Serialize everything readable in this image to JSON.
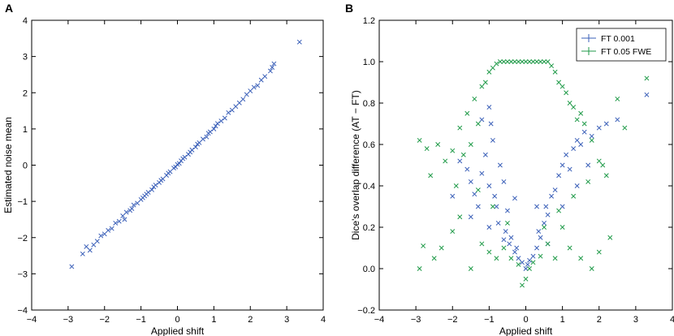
{
  "panel_a_label": "A",
  "panel_b_label": "B",
  "colors": {
    "blue": "#3a5fb8",
    "green": "#1f9a48"
  },
  "chart_data": [
    {
      "type": "scatter",
      "panel": "A",
      "xlabel": "Applied shift",
      "ylabel": "Estimated noise mean",
      "xlim": [
        -4,
        4
      ],
      "ylim": [
        -4,
        4
      ],
      "xticks": [
        "−4",
        "−3",
        "−2",
        "−1",
        "0",
        "1",
        "2",
        "3",
        "4"
      ],
      "yticks": [
        "−4",
        "−3",
        "−2",
        "−1",
        "0",
        "1",
        "2",
        "3",
        "4"
      ],
      "marker": "x",
      "series": [
        {
          "name": "estimates",
          "color": "#3a5fb8",
          "points": [
            [
              -2.9,
              -2.8
            ],
            [
              -2.6,
              -2.45
            ],
            [
              -2.5,
              -2.25
            ],
            [
              -2.4,
              -2.35
            ],
            [
              -2.3,
              -2.2
            ],
            [
              -2.2,
              -2.1
            ],
            [
              -2.1,
              -1.95
            ],
            [
              -2.0,
              -1.9
            ],
            [
              -1.9,
              -1.8
            ],
            [
              -1.8,
              -1.75
            ],
            [
              -1.7,
              -1.6
            ],
            [
              -1.6,
              -1.55
            ],
            [
              -1.5,
              -1.4
            ],
            [
              -1.45,
              -1.5
            ],
            [
              -1.4,
              -1.3
            ],
            [
              -1.3,
              -1.25
            ],
            [
              -1.25,
              -1.2
            ],
            [
              -1.2,
              -1.1
            ],
            [
              -1.1,
              -1.05
            ],
            [
              -1.0,
              -0.95
            ],
            [
              -0.95,
              -0.9
            ],
            [
              -0.9,
              -0.85
            ],
            [
              -0.85,
              -0.8
            ],
            [
              -0.8,
              -0.75
            ],
            [
              -0.7,
              -0.68
            ],
            [
              -0.65,
              -0.6
            ],
            [
              -0.6,
              -0.55
            ],
            [
              -0.5,
              -0.48
            ],
            [
              -0.45,
              -0.42
            ],
            [
              -0.4,
              -0.38
            ],
            [
              -0.3,
              -0.28
            ],
            [
              -0.25,
              -0.22
            ],
            [
              -0.2,
              -0.18
            ],
            [
              -0.1,
              -0.08
            ],
            [
              -0.05,
              -0.05
            ],
            [
              0.0,
              0.02
            ],
            [
              0.05,
              0.05
            ],
            [
              0.1,
              0.12
            ],
            [
              0.15,
              0.18
            ],
            [
              0.2,
              0.22
            ],
            [
              0.3,
              0.3
            ],
            [
              0.35,
              0.36
            ],
            [
              0.4,
              0.42
            ],
            [
              0.5,
              0.5
            ],
            [
              0.55,
              0.58
            ],
            [
              0.6,
              0.62
            ],
            [
              0.7,
              0.72
            ],
            [
              0.8,
              0.78
            ],
            [
              0.85,
              0.88
            ],
            [
              0.9,
              0.92
            ],
            [
              1.0,
              1.0
            ],
            [
              1.05,
              1.08
            ],
            [
              1.1,
              1.15
            ],
            [
              1.2,
              1.22
            ],
            [
              1.3,
              1.3
            ],
            [
              1.4,
              1.45
            ],
            [
              1.5,
              1.52
            ],
            [
              1.6,
              1.62
            ],
            [
              1.7,
              1.72
            ],
            [
              1.8,
              1.82
            ],
            [
              1.9,
              1.95
            ],
            [
              2.0,
              2.05
            ],
            [
              2.1,
              2.15
            ],
            [
              2.2,
              2.2
            ],
            [
              2.3,
              2.35
            ],
            [
              2.4,
              2.45
            ],
            [
              2.55,
              2.6
            ],
            [
              2.6,
              2.7
            ],
            [
              2.65,
              2.8
            ],
            [
              3.35,
              3.4
            ]
          ]
        }
      ]
    },
    {
      "type": "scatter",
      "panel": "B",
      "xlabel": "Applied shift",
      "ylabel": "Dice's overlap difference (AT − FT)",
      "xlim": [
        -4,
        4
      ],
      "ylim": [
        -0.2,
        1.2
      ],
      "xticks": [
        "−4",
        "−3",
        "−2",
        "−1",
        "0",
        "1",
        "2",
        "3",
        "4"
      ],
      "yticks": [
        "−0.2",
        "0.0",
        "0.2",
        "0.4",
        "0.6",
        "0.8",
        "1.0",
        "1.2"
      ],
      "legend": {
        "position": "top-right",
        "entries": [
          "FT 0.001",
          "FT 0.05 FWE"
        ]
      },
      "marker": "x",
      "series": [
        {
          "name": "FT 0.001",
          "color": "#3a5fb8",
          "points": [
            [
              -1.8,
              0.52
            ],
            [
              -1.6,
              0.48
            ],
            [
              -1.5,
              0.42
            ],
            [
              -1.4,
              0.36
            ],
            [
              -1.3,
              0.3
            ],
            [
              -1.2,
              0.46
            ],
            [
              -1.1,
              0.55
            ],
            [
              -1.0,
              0.4
            ],
            [
              -0.95,
              0.7
            ],
            [
              -0.9,
              0.62
            ],
            [
              -0.85,
              0.35
            ],
            [
              -0.8,
              0.3
            ],
            [
              -0.75,
              0.22
            ],
            [
              -0.7,
              0.5
            ],
            [
              -0.6,
              0.42
            ],
            [
              -0.55,
              0.18
            ],
            [
              -0.5,
              0.28
            ],
            [
              -0.45,
              0.12
            ],
            [
              -0.4,
              0.15
            ],
            [
              -0.3,
              0.08
            ],
            [
              -0.25,
              0.1
            ],
            [
              -0.2,
              0.05
            ],
            [
              -0.1,
              0.03
            ],
            [
              0.0,
              0.0
            ],
            [
              0.05,
              0.02
            ],
            [
              0.1,
              0.04
            ],
            [
              0.2,
              0.06
            ],
            [
              0.3,
              0.1
            ],
            [
              0.35,
              0.18
            ],
            [
              0.4,
              0.15
            ],
            [
              0.5,
              0.22
            ],
            [
              0.55,
              0.3
            ],
            [
              0.6,
              0.26
            ],
            [
              0.7,
              0.35
            ],
            [
              0.8,
              0.38
            ],
            [
              0.9,
              0.45
            ],
            [
              1.0,
              0.5
            ],
            [
              1.1,
              0.55
            ],
            [
              1.2,
              0.48
            ],
            [
              1.3,
              0.58
            ],
            [
              1.4,
              0.62
            ],
            [
              1.5,
              0.6
            ],
            [
              1.6,
              0.66
            ],
            [
              1.8,
              0.64
            ],
            [
              2.0,
              0.68
            ],
            [
              2.2,
              0.7
            ],
            [
              2.5,
              0.72
            ],
            [
              3.3,
              0.84
            ],
            [
              -2.0,
              0.35
            ],
            [
              -1.5,
              0.25
            ],
            [
              -1.0,
              0.2
            ],
            [
              -0.6,
              0.14
            ],
            [
              0.6,
              0.12
            ],
            [
              1.0,
              0.3
            ],
            [
              1.4,
              0.4
            ],
            [
              -0.3,
              0.34
            ],
            [
              0.3,
              0.3
            ],
            [
              -1.2,
              0.72
            ],
            [
              -1.0,
              0.78
            ],
            [
              1.7,
              0.5
            ]
          ]
        },
        {
          "name": "FT 0.05 FWE",
          "color": "#1f9a48",
          "points": [
            [
              -2.9,
              0.62
            ],
            [
              -2.7,
              0.58
            ],
            [
              -2.6,
              0.45
            ],
            [
              -2.4,
              0.6
            ],
            [
              -2.2,
              0.52
            ],
            [
              -2.0,
              0.57
            ],
            [
              -1.9,
              0.4
            ],
            [
              -1.8,
              0.68
            ],
            [
              -1.7,
              0.55
            ],
            [
              -1.6,
              0.75
            ],
            [
              -1.5,
              0.6
            ],
            [
              -1.4,
              0.82
            ],
            [
              -1.3,
              0.7
            ],
            [
              -1.2,
              0.88
            ],
            [
              -1.1,
              0.9
            ],
            [
              -1.0,
              0.95
            ],
            [
              -0.9,
              0.97
            ],
            [
              -0.8,
              0.99
            ],
            [
              -0.7,
              1.0
            ],
            [
              -0.6,
              1.0
            ],
            [
              -0.5,
              1.0
            ],
            [
              -0.4,
              1.0
            ],
            [
              -0.3,
              1.0
            ],
            [
              -0.2,
              1.0
            ],
            [
              -0.1,
              1.0
            ],
            [
              0.0,
              1.0
            ],
            [
              0.1,
              1.0
            ],
            [
              0.2,
              1.0
            ],
            [
              0.3,
              1.0
            ],
            [
              0.4,
              1.0
            ],
            [
              0.5,
              1.0
            ],
            [
              0.6,
              1.0
            ],
            [
              0.7,
              0.98
            ],
            [
              0.8,
              0.95
            ],
            [
              0.9,
              0.9
            ],
            [
              1.0,
              0.88
            ],
            [
              1.1,
              0.85
            ],
            [
              1.2,
              0.8
            ],
            [
              1.3,
              0.78
            ],
            [
              1.4,
              0.72
            ],
            [
              1.5,
              0.75
            ],
            [
              1.6,
              0.7
            ],
            [
              1.8,
              0.62
            ],
            [
              2.0,
              0.52
            ],
            [
              2.2,
              0.45
            ],
            [
              2.5,
              0.82
            ],
            [
              2.7,
              0.68
            ],
            [
              3.3,
              0.92
            ],
            [
              -2.8,
              0.11
            ],
            [
              -2.5,
              0.05
            ],
            [
              -2.3,
              0.1
            ],
            [
              -2.0,
              0.18
            ],
            [
              -1.8,
              0.25
            ],
            [
              -1.5,
              0.0
            ],
            [
              -1.2,
              0.12
            ],
            [
              -1.0,
              0.08
            ],
            [
              -0.8,
              0.05
            ],
            [
              -0.6,
              0.1
            ],
            [
              -0.4,
              0.05
            ],
            [
              -0.2,
              0.02
            ],
            [
              0.0,
              -0.05
            ],
            [
              0.2,
              0.03
            ],
            [
              0.4,
              0.06
            ],
            [
              0.6,
              0.12
            ],
            [
              0.8,
              0.05
            ],
            [
              1.0,
              0.2
            ],
            [
              1.2,
              0.1
            ],
            [
              1.5,
              0.05
            ],
            [
              1.8,
              0.0
            ],
            [
              2.0,
              0.08
            ],
            [
              2.3,
              0.15
            ],
            [
              -1.3,
              0.38
            ],
            [
              -0.9,
              0.3
            ],
            [
              -0.5,
              0.22
            ],
            [
              0.5,
              0.2
            ],
            [
              0.9,
              0.28
            ],
            [
              1.3,
              0.35
            ],
            [
              -2.9,
              0.0
            ],
            [
              -0.1,
              -0.08
            ],
            [
              0.1,
              0.0
            ],
            [
              2.1,
              0.5
            ],
            [
              1.7,
              0.42
            ]
          ]
        }
      ]
    }
  ]
}
